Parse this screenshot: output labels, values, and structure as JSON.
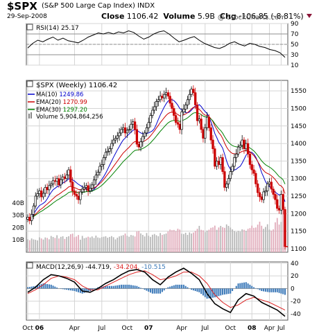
{
  "header": {
    "symbol": "$SPX",
    "name": "(S&P 500 Large Cap Index)",
    "exchange": "INDX",
    "date": "29-Sep-2008",
    "close_label": "Close",
    "close": "1106.42",
    "volume_label": "Volume",
    "volume": "5.9B",
    "chg_label": "Chg",
    "chg": "-106.85 (-8.81%)",
    "watermark": "@ StockCharts.com"
  },
  "chart_data": [
    {
      "type": "line",
      "panel": "RSI",
      "legend": "RSI(14) 25.17",
      "ylim": [
        10,
        90
      ],
      "ticks": [
        90,
        70,
        50,
        30,
        10
      ],
      "reference_lines": [
        30,
        50,
        70
      ],
      "x": [
        0,
        2,
        4,
        6,
        8,
        10,
        12,
        14,
        16,
        18,
        20,
        22,
        24,
        26,
        28,
        30,
        32,
        34,
        36,
        38,
        40,
        42,
        44,
        46,
        48,
        50,
        52,
        54,
        56,
        58,
        60,
        62,
        64,
        66,
        68,
        70,
        72,
        74,
        76,
        78,
        80,
        82,
        84,
        86,
        88,
        90,
        92,
        94,
        96,
        98,
        100,
        102
      ],
      "values": [
        43,
        52,
        58,
        55,
        60,
        64,
        58,
        62,
        57,
        55,
        53,
        58,
        64,
        68,
        72,
        70,
        73,
        70,
        74,
        72,
        76,
        73,
        66,
        60,
        64,
        70,
        74,
        76,
        70,
        62,
        55,
        58,
        62,
        65,
        58,
        52,
        48,
        44,
        42,
        46,
        52,
        55,
        50,
        47,
        52,
        50,
        46,
        44,
        40,
        38,
        34,
        25
      ]
    },
    {
      "type": "candlestick",
      "panel": "Price",
      "title": "$SPX (Weekly) 1106.42",
      "ylim": [
        1090,
        1580
      ],
      "ticks": [
        1550,
        1500,
        1450,
        1400,
        1350,
        1300,
        1250,
        1200,
        1150,
        1100
      ],
      "x_ticks": [
        "Oct",
        "06",
        "Apr",
        "Jul",
        "Oct",
        "07",
        "Apr",
        "Jul",
        "Oct",
        "08",
        "Apr",
        "Jul"
      ],
      "closes": [
        1190,
        1180,
        1198,
        1222,
        1250,
        1257,
        1265,
        1248,
        1258,
        1275,
        1268,
        1280,
        1285,
        1294,
        1292,
        1300,
        1282,
        1297,
        1305,
        1300,
        1310,
        1325,
        1290,
        1265,
        1255,
        1250,
        1240,
        1262,
        1270,
        1275,
        1280,
        1265,
        1272,
        1282,
        1296,
        1310,
        1318,
        1335,
        1340,
        1360,
        1375,
        1378,
        1385,
        1400,
        1410,
        1415,
        1422,
        1430,
        1440,
        1445,
        1430,
        1438,
        1440,
        1455,
        1462,
        1440,
        1398,
        1390,
        1405,
        1420,
        1430,
        1445,
        1460,
        1480,
        1495,
        1505,
        1520,
        1525,
        1535,
        1530,
        1540,
        1545,
        1535,
        1515,
        1500,
        1480,
        1460,
        1455,
        1440,
        1490,
        1498,
        1510,
        1525,
        1540,
        1555,
        1545,
        1510,
        1465,
        1470,
        1440,
        1415,
        1445,
        1475,
        1445,
        1410,
        1385,
        1335,
        1350,
        1340,
        1360,
        1320,
        1275,
        1285,
        1300,
        1320,
        1335,
        1360,
        1370,
        1390,
        1395,
        1410,
        1385,
        1400,
        1370,
        1340,
        1325,
        1315,
        1285,
        1260,
        1248,
        1240,
        1262,
        1265,
        1285,
        1290,
        1270,
        1255,
        1240,
        1215,
        1210,
        1255,
        1212,
        1106
      ],
      "series": [
        {
          "name": "MA(10)",
          "last": "1249.86",
          "color": "#0000cc",
          "period": 10,
          "kind": "sma"
        },
        {
          "name": "EMA(20)",
          "last": "1270.99",
          "color": "#cc0000",
          "period": 20,
          "kind": "ema"
        },
        {
          "name": "EMA(30)",
          "last": "1297.20",
          "color": "#008000",
          "period": 30,
          "kind": "ema"
        }
      ]
    },
    {
      "type": "bar",
      "panel": "Volume",
      "legend": "Volume 5,904,864,256",
      "ticks": [
        "40B",
        "30B",
        "20B",
        "10B"
      ],
      "ylim": [
        0,
        45
      ],
      "values_billions": [
        10.5,
        9.8,
        11.2,
        10.4,
        10.1,
        9.6,
        12.1,
        11.2,
        10.3,
        12.0,
        11.6,
        10.5,
        13.2,
        12.4,
        11.6,
        13.8,
        11.2,
        12.5,
        13.0,
        10.8,
        12.4,
        13.0,
        14.6,
        15.1,
        12.2,
        12.8,
        14.0,
        10.2,
        13.3,
        11.4,
        11.9,
        12.6,
        12.0,
        12.8,
        11.6,
        13.5,
        12.0,
        11.6,
        12.2,
        12.6,
        13.0,
        11.8,
        12.4,
        13.1,
        12.2,
        10.4,
        11.8,
        12.9,
        13.4,
        13.9,
        15.2,
        13.4,
        12.6,
        14.0,
        13.6,
        12.8,
        16.8,
        17.2,
        15.3,
        14.1,
        12.8,
        15.6,
        13.4,
        12.5,
        14.2,
        14.8,
        13.8,
        13.0,
        15.6,
        14.1,
        14.6,
        15.2,
        16.8,
        18.4,
        17.9,
        18.1,
        17.2,
        19.1,
        18.4,
        15.0,
        14.8,
        15.8,
        14.1,
        16.1,
        15.2,
        16.0,
        17.4,
        19.0,
        21.4,
        18.2,
        17.8,
        16.4,
        17.6,
        18.3,
        19.8,
        20.2,
        21.6,
        18.2,
        20.1,
        21.4,
        20.3,
        19.8,
        22.6,
        21.4,
        20.0,
        18.6,
        17.2,
        16.5,
        17.4,
        16.8,
        18.6,
        18.2,
        17.4,
        19.0,
        19.6,
        21.6,
        19.8,
        20.1,
        22.4,
        24.8,
        21.5,
        19.0,
        20.5,
        22.7,
        18.4,
        17.6,
        18.6,
        24.3,
        27.8,
        22.5,
        24.6,
        40.8,
        30.1
      ]
    },
    {
      "type": "line",
      "panel": "MACD",
      "legend_label": "MACD(12,26,9)",
      "legend_values": [
        "-44.719",
        "-34.204",
        "-10.515"
      ],
      "ylim": [
        -50,
        42
      ],
      "ticks": [
        40,
        20,
        0,
        -20,
        -40
      ],
      "x": [
        0,
        4,
        8,
        12,
        16,
        20,
        24,
        28,
        32,
        36,
        40,
        44,
        48,
        52,
        56,
        60,
        64,
        68,
        72,
        76,
        80,
        84,
        88,
        92,
        96,
        100,
        104,
        108,
        112,
        116,
        120,
        124,
        128,
        132
      ],
      "macd": [
        -6,
        2,
        14,
        22,
        20,
        16,
        10,
        -4,
        -6,
        0,
        8,
        14,
        22,
        28,
        30,
        26,
        14,
        6,
        18,
        26,
        32,
        24,
        14,
        -8,
        -24,
        -32,
        -38,
        -18,
        -8,
        -12,
        -22,
        -28,
        -34,
        -44
      ],
      "signal": [
        -8,
        -2,
        6,
        16,
        20,
        18,
        14,
        4,
        -2,
        -2,
        4,
        10,
        16,
        22,
        26,
        28,
        22,
        14,
        16,
        20,
        26,
        26,
        20,
        8,
        -10,
        -22,
        -30,
        -26,
        -18,
        -14,
        -18,
        -22,
        -28,
        -34
      ]
    }
  ]
}
